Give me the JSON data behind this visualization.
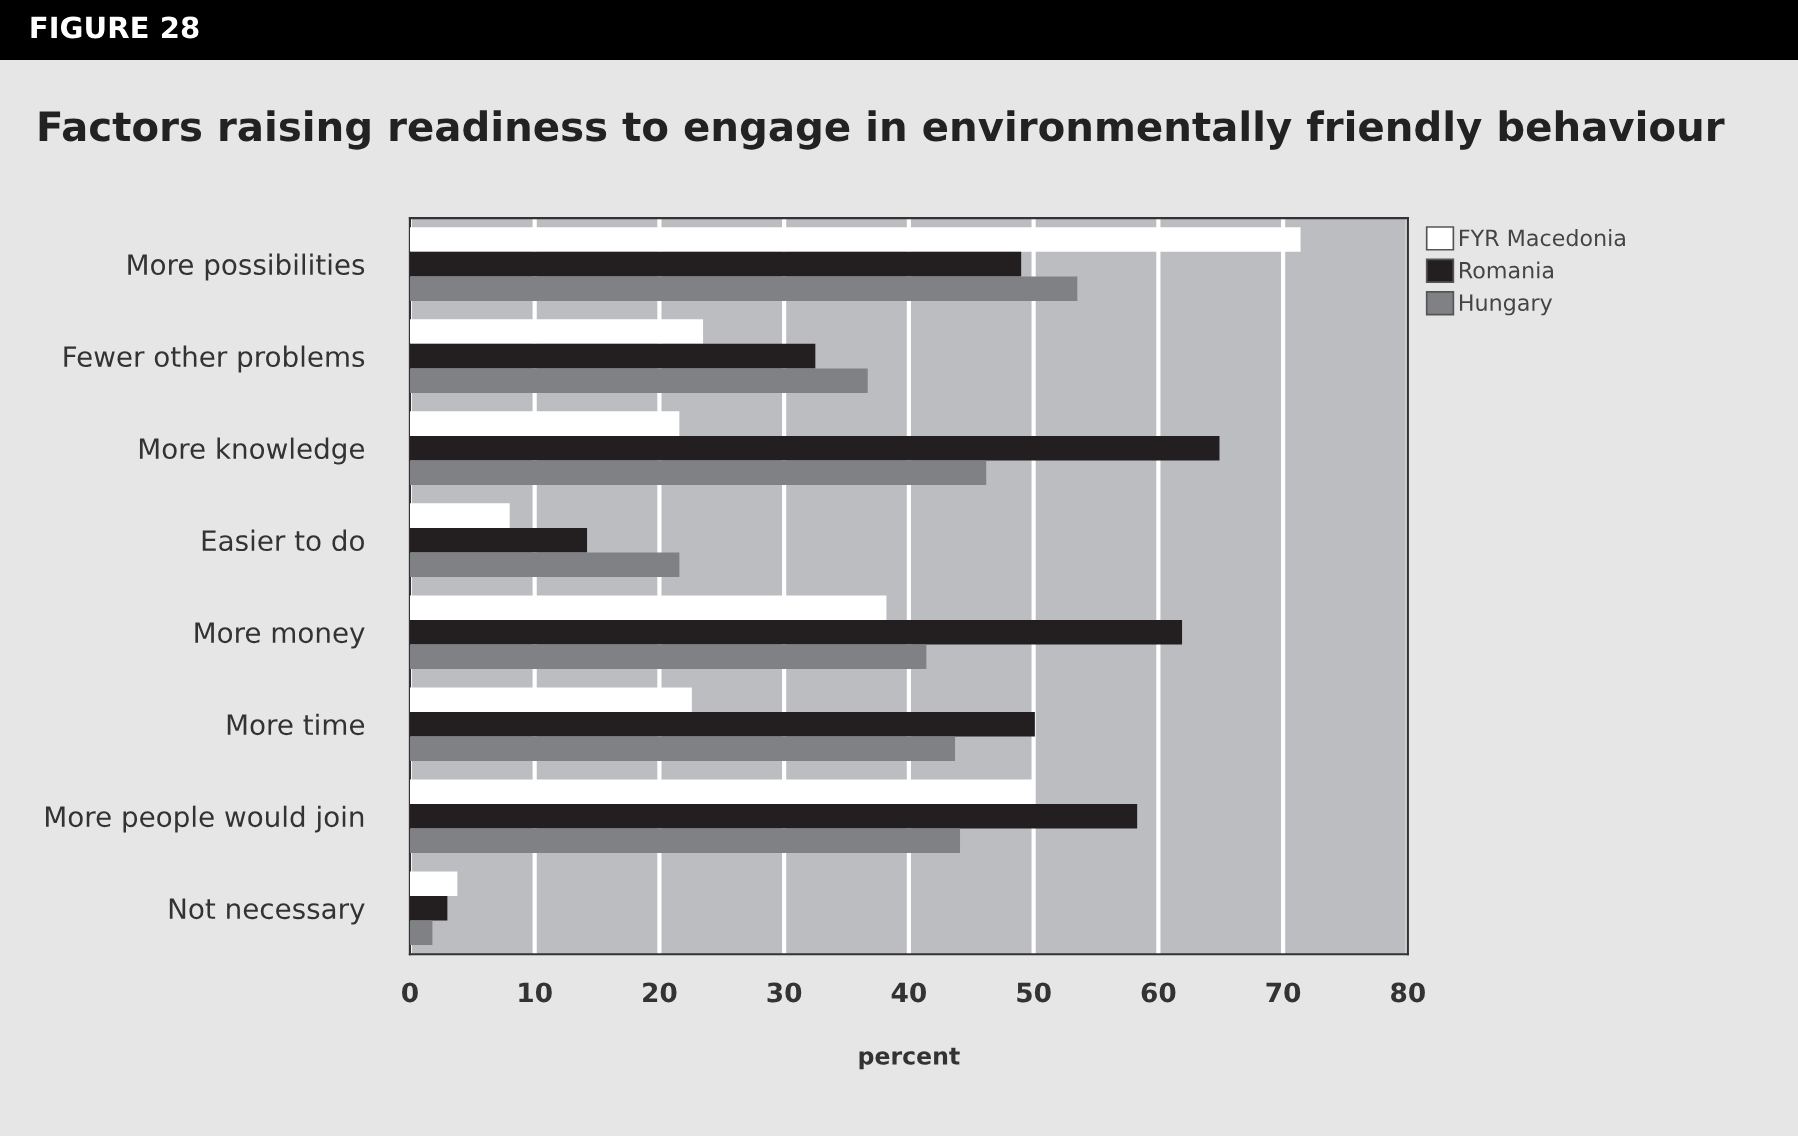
{
  "chart_data": {
    "type": "bar",
    "orientation": "horizontal",
    "title": "Factors raising readiness to engage in environmentally friendly behaviour",
    "annotations": [
      "FIGURE 28"
    ],
    "xlabel": "percent",
    "categories": [
      "More possibilities",
      "Fewer other problems",
      "More knowledge",
      "Easier to do",
      "More money",
      "More time",
      "More people would join",
      "Not necessary"
    ],
    "series": [
      {
        "name": "FYR Macedonia",
        "color": "#ffffff",
        "values": [
          71.4,
          23.5,
          21.6,
          8.0,
          38.2,
          22.6,
          50.1,
          3.8
        ]
      },
      {
        "name": "Romania",
        "color": "#231f20",
        "values": [
          49.0,
          32.5,
          64.9,
          14.2,
          61.9,
          50.1,
          58.3,
          3.0
        ]
      },
      {
        "name": "Hungary",
        "color": "#808185",
        "values": [
          53.5,
          36.7,
          46.2,
          21.6,
          41.4,
          43.7,
          44.1,
          1.8
        ]
      }
    ],
    "xlim": [
      0,
      80
    ],
    "xticks": [
      0,
      10,
      20,
      30,
      40,
      50,
      60,
      70,
      80
    ],
    "grid": "x",
    "legend": "top right"
  }
}
